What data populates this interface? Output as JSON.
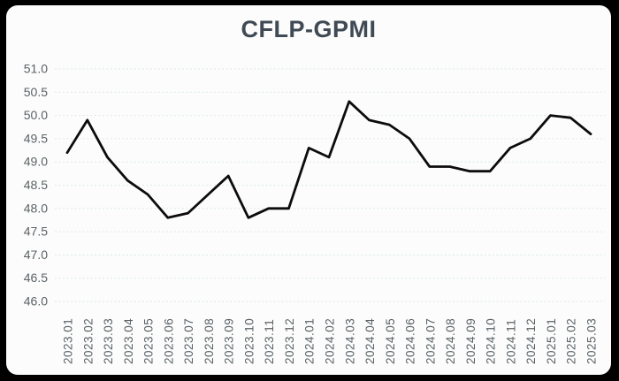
{
  "window": {
    "background_color": "#000000",
    "card_background_color": "#fcfcfc"
  },
  "chart_data": {
    "type": "line",
    "title": "CFLP-GPMI",
    "categories": [
      "2023.01",
      "2023.02",
      "2023.03",
      "2023.04",
      "2023.05",
      "2023.06",
      "2023.07",
      "2023.08",
      "2023.09",
      "2023.10",
      "2023.11",
      "2023.12",
      "2024.01",
      "2024.02",
      "2024.03",
      "2024.04",
      "2024.05",
      "2024.06",
      "2024.07",
      "2024.08",
      "2024.09",
      "2024.10",
      "2024.11",
      "2024.12",
      "2025.01",
      "2025.02",
      "2025.03"
    ],
    "values": [
      49.2,
      49.9,
      49.1,
      48.6,
      48.3,
      47.8,
      47.9,
      48.3,
      48.7,
      47.8,
      48.0,
      48.0,
      49.3,
      49.1,
      50.3,
      49.9,
      49.8,
      49.5,
      48.9,
      48.9,
      48.8,
      48.8,
      49.3,
      49.5,
      50.0,
      49.95,
      49.6
    ],
    "xlabel": "",
    "ylabel": "",
    "ylim": [
      46.0,
      51.0
    ],
    "ytick_step": 0.5,
    "ytick_labels": [
      "51.0",
      "50.5",
      "50.0",
      "49.5",
      "49.0",
      "48.5",
      "48.0",
      "47.5",
      "47.0",
      "46.5",
      "46.0"
    ],
    "legend": "none",
    "grid": "horizontal-dashed",
    "x_label_rotation": -90,
    "style": {
      "line_color": "#0c0c0c",
      "line_width": 2.8,
      "gridline_color": "#dce8e9",
      "axis_label_color": "#5b6266",
      "title_color": "#3f4a54"
    }
  }
}
